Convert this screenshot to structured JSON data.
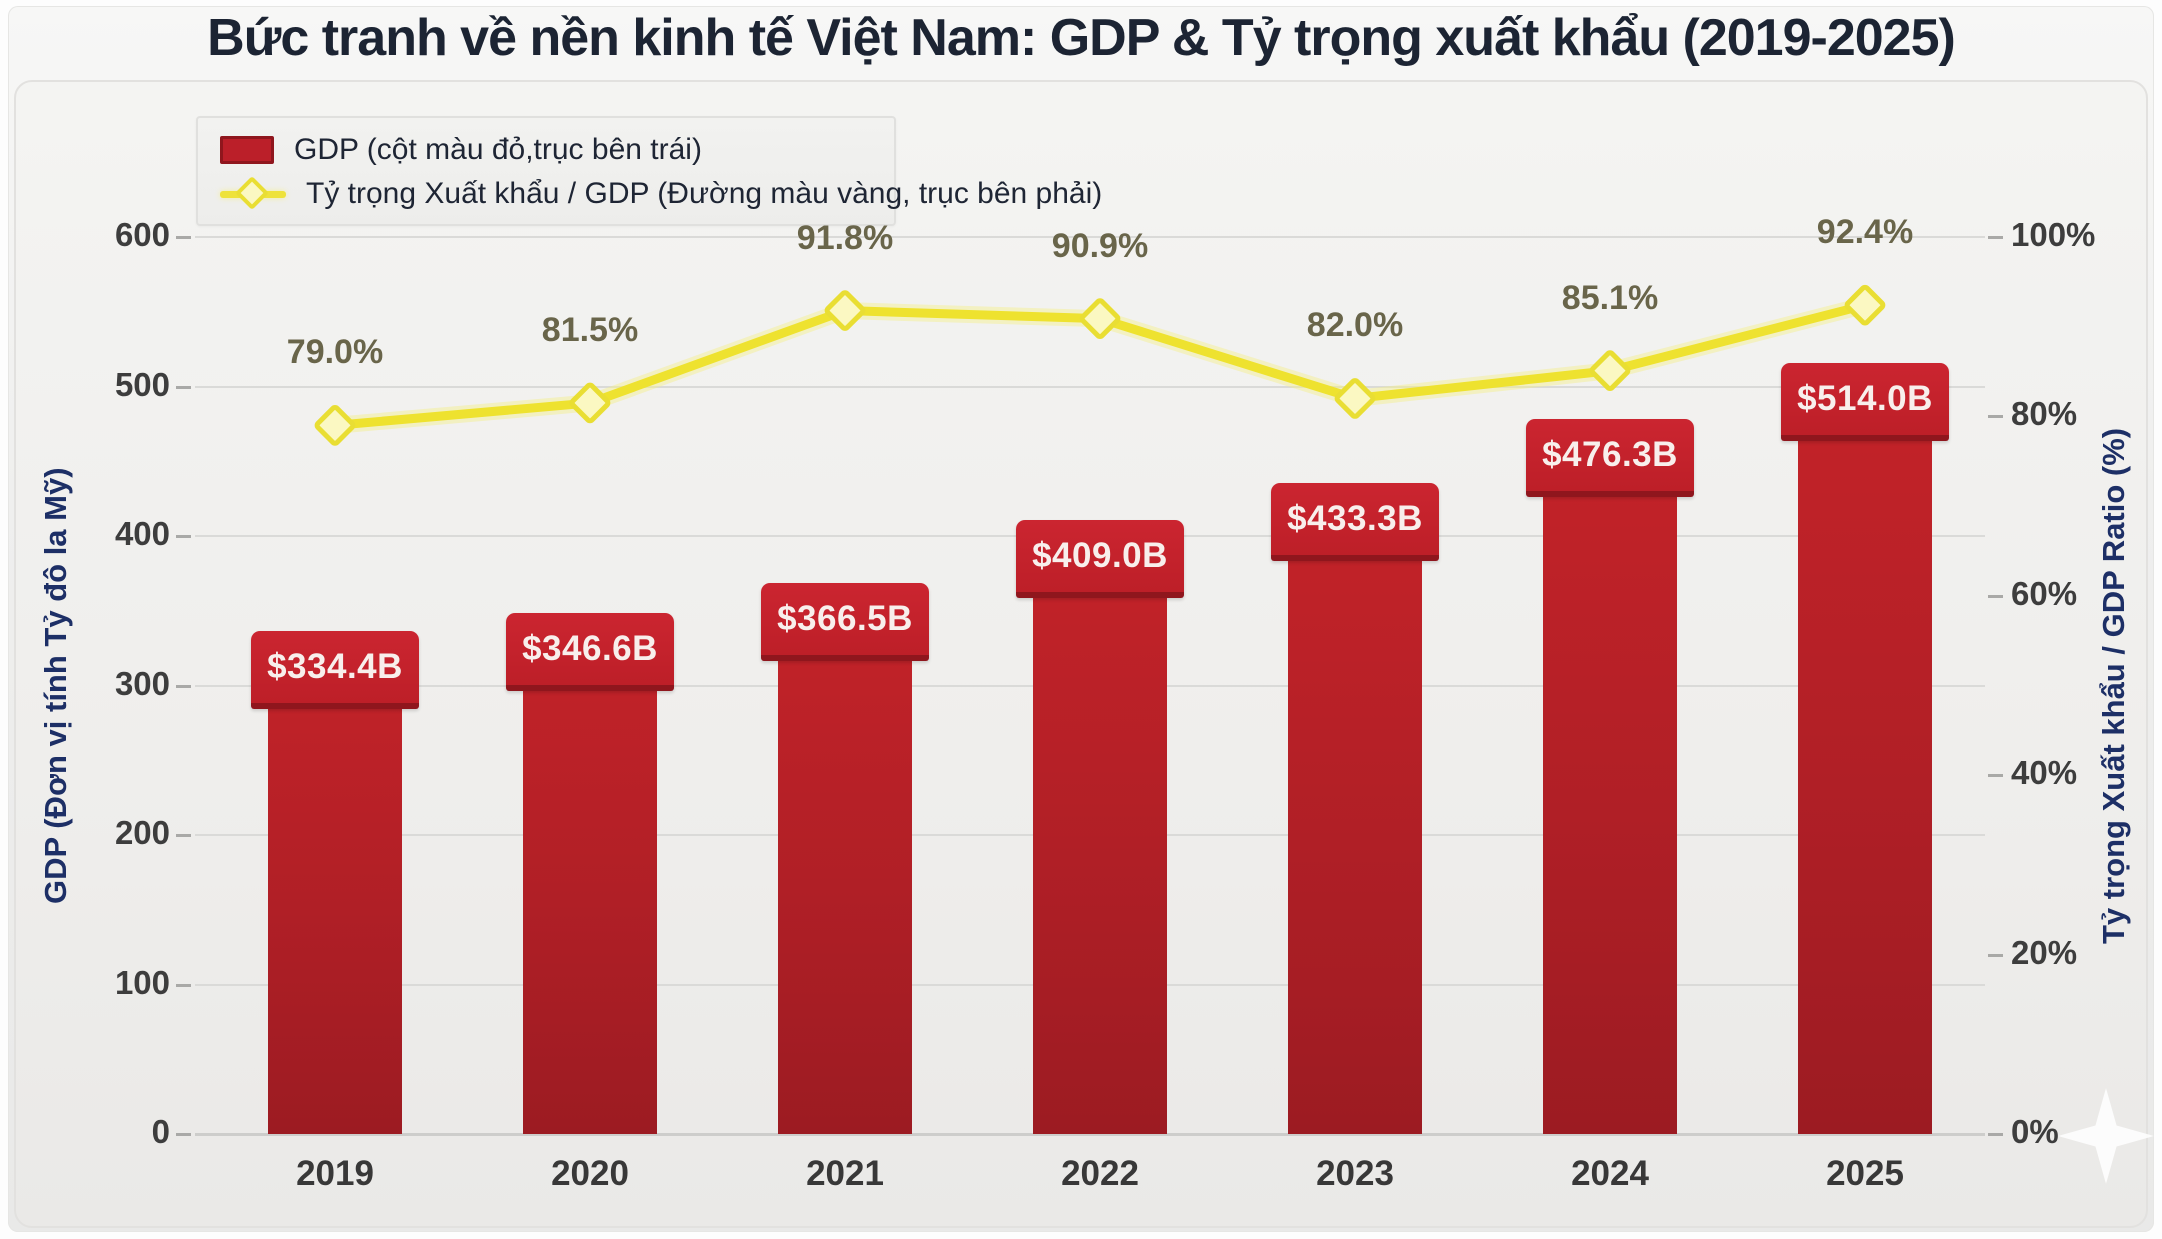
{
  "title": "Bức tranh về nền kinh tế Việt Nam: GDP & Tỷ trọng xuất khẩu (2019-2025)",
  "legend": {
    "gdp_label": "GDP (cột màu đỏ,trục bên trái)",
    "ratio_label": "Tỷ trọng Xuất khẩu / GDP (Đường màu vàng, trục bên phải)"
  },
  "chart_data": {
    "type": "bar+line",
    "title": "Bức tranh về nền kinh tế Việt Nam: GDP & Tỷ trọng xuất khẩu (2019-2025)",
    "categories": [
      "2019",
      "2020",
      "2021",
      "2022",
      "2023",
      "2024",
      "2025"
    ],
    "series": [
      {
        "name": "GDP",
        "chart": "bar",
        "axis": "left",
        "unit": "billion USD",
        "values": [
          334.4,
          346.6,
          366.5,
          409.0,
          433.3,
          476.3,
          514.0
        ],
        "labels": [
          "$334.4B",
          "$346.6B",
          "$366.5B",
          "$409.0B",
          "$433.3B",
          "$476.3B",
          "$514.0B"
        ],
        "color": "#c2202a"
      },
      {
        "name": "Tỷ trọng Xuất khẩu / GDP",
        "chart": "line",
        "axis": "right",
        "unit": "%",
        "values": [
          79.0,
          81.5,
          91.8,
          90.9,
          82.0,
          85.1,
          92.4
        ],
        "labels": [
          "79.0%",
          "81.5%",
          "91.8%",
          "90.9%",
          "82.0%",
          "85.1%",
          "92.4%"
        ],
        "color": "#eee22f"
      }
    ],
    "left_axis": {
      "label": "GDP (Đơn vị tính Tỷ đô la Mỹ)",
      "range": [
        0,
        600
      ],
      "ticks": [
        "600",
        "500",
        "400",
        "300",
        "200",
        "100",
        "0"
      ]
    },
    "right_axis": {
      "label": "Tỷ trọng Xuất khẩu / GDP Ratio (%)",
      "range": [
        0,
        100
      ],
      "ticks": [
        "100%",
        "80%",
        "60%",
        "40%",
        "20%",
        "0%"
      ]
    },
    "grid": "horizontal",
    "legend_position": "top-left"
  },
  "colors": {
    "bar_red": "#c2202a",
    "bar_dark_red": "#9c1b22",
    "cap_border_red": "#8f161d",
    "line_yellow": "#eee22f",
    "marker_fill": "#fbf8c2",
    "title_navy": "#1c2433",
    "axis_title_navy": "#1d2f66",
    "pct_label_olive": "#69654a",
    "tick_gray": "#3d3d3d",
    "grid_gray": "#dadad8"
  }
}
